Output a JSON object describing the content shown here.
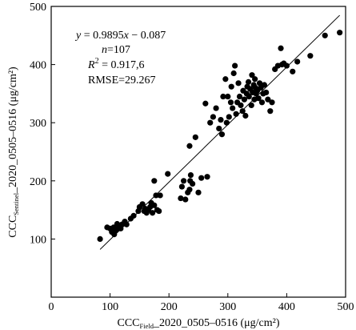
{
  "chart_data": {
    "type": "scatter",
    "title": "",
    "xlabel": {
      "main": "CCC",
      "sub": "Field",
      "rest": "_2020_0505–0516 (μg/cm²)"
    },
    "ylabel": {
      "main": "CCC",
      "sub": "Sentinel",
      "rest": "_2020_0505–0516 (μg/cm²)"
    },
    "xlim": [
      0,
      500
    ],
    "ylim": [
      0,
      500
    ],
    "xticks": [
      0,
      100,
      200,
      300,
      400,
      500
    ],
    "yticks": [
      100,
      200,
      300,
      400,
      500
    ],
    "grid": false,
    "regression": {
      "slope": 0.9895,
      "intercept": -0.087,
      "x_range": [
        83,
        490
      ]
    },
    "annotations": {
      "equation_var": "y",
      "equation_rest": " = 0.9895",
      "equation_x": "x",
      "equation_tail": " − 0.087",
      "n_label": "n",
      "n_value": "=107",
      "r2_label": "R",
      "r2_sup": "2",
      "r2_value": " = 0.917,6",
      "rmse": "RMSE=29.267"
    },
    "points": [
      [
        83,
        100
      ],
      [
        95,
        120
      ],
      [
        100,
        118
      ],
      [
        103,
        112
      ],
      [
        106,
        120
      ],
      [
        107,
        108
      ],
      [
        110,
        115
      ],
      [
        112,
        126
      ],
      [
        115,
        120
      ],
      [
        118,
        118
      ],
      [
        120,
        125
      ],
      [
        125,
        130
      ],
      [
        128,
        125
      ],
      [
        135,
        135
      ],
      [
        140,
        140
      ],
      [
        148,
        148
      ],
      [
        150,
        155
      ],
      [
        155,
        160
      ],
      [
        158,
        148
      ],
      [
        160,
        152
      ],
      [
        162,
        145
      ],
      [
        165,
        150
      ],
      [
        168,
        155
      ],
      [
        170,
        162
      ],
      [
        172,
        145
      ],
      [
        175,
        158
      ],
      [
        178,
        175
      ],
      [
        180,
        150
      ],
      [
        183,
        148
      ],
      [
        185,
        175
      ],
      [
        175,
        200
      ],
      [
        198,
        212
      ],
      [
        220,
        170
      ],
      [
        222,
        190
      ],
      [
        225,
        200
      ],
      [
        228,
        168
      ],
      [
        232,
        180
      ],
      [
        235,
        185
      ],
      [
        236,
        200
      ],
      [
        237,
        210
      ],
      [
        240,
        195
      ],
      [
        245,
        275
      ],
      [
        250,
        180
      ],
      [
        255,
        205
      ],
      [
        235,
        260
      ],
      [
        262,
        333
      ],
      [
        265,
        207
      ],
      [
        270,
        300
      ],
      [
        275,
        310
      ],
      [
        280,
        325
      ],
      [
        285,
        290
      ],
      [
        288,
        305
      ],
      [
        290,
        280
      ],
      [
        292,
        345
      ],
      [
        296,
        375
      ],
      [
        298,
        300
      ],
      [
        300,
        345
      ],
      [
        302,
        310
      ],
      [
        305,
        335
      ],
      [
        306,
        362
      ],
      [
        308,
        325
      ],
      [
        310,
        385
      ],
      [
        312,
        398
      ],
      [
        314,
        315
      ],
      [
        316,
        335
      ],
      [
        318,
        368
      ],
      [
        320,
        345
      ],
      [
        322,
        330
      ],
      [
        325,
        320
      ],
      [
        326,
        355
      ],
      [
        328,
        340
      ],
      [
        330,
        312
      ],
      [
        332,
        350
      ],
      [
        333,
        362
      ],
      [
        335,
        370
      ],
      [
        336,
        345
      ],
      [
        338,
        358
      ],
      [
        340,
        330
      ],
      [
        341,
        382
      ],
      [
        342,
        352
      ],
      [
        344,
        365
      ],
      [
        345,
        340
      ],
      [
        346,
        375
      ],
      [
        347,
        360
      ],
      [
        348,
        350
      ],
      [
        350,
        355
      ],
      [
        352,
        342
      ],
      [
        354,
        368
      ],
      [
        356,
        360
      ],
      [
        358,
        335
      ],
      [
        360,
        350
      ],
      [
        362,
        365
      ],
      [
        365,
        352
      ],
      [
        368,
        340
      ],
      [
        372,
        320
      ],
      [
        375,
        335
      ],
      [
        380,
        392
      ],
      [
        385,
        398
      ],
      [
        390,
        428
      ],
      [
        392,
        400
      ],
      [
        395,
        402
      ],
      [
        400,
        398
      ],
      [
        410,
        388
      ],
      [
        418,
        405
      ],
      [
        440,
        415
      ],
      [
        465,
        450
      ],
      [
        490,
        455
      ]
    ]
  }
}
